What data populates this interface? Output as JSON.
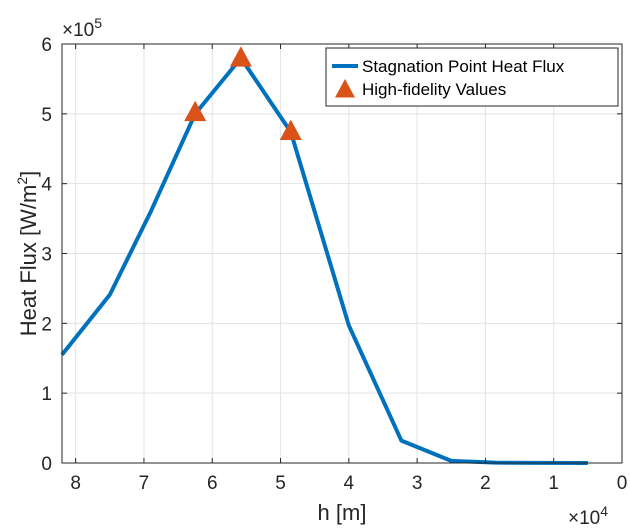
{
  "chart_data": {
    "type": "line",
    "xlabel": "h [m]",
    "ylabel": "Heat Flux [W/m^2]",
    "ylabel_base": "Heat Flux [W/m",
    "ylabel_sup": "2",
    "ylabel_close": "]",
    "x_multiplier": {
      "base": "×10",
      "exp": "4"
    },
    "y_multiplier": {
      "base": "×10",
      "exp": "5"
    },
    "x_reversed": true,
    "xlim": [
      82000,
      0
    ],
    "ylim": [
      0,
      600000
    ],
    "x_ticks": [
      80000,
      70000,
      60000,
      50000,
      40000,
      30000,
      20000,
      10000,
      0
    ],
    "x_tick_labels": [
      "8",
      "7",
      "6",
      "5",
      "4",
      "3",
      "2",
      "1",
      "0"
    ],
    "y_ticks": [
      0,
      100000,
      200000,
      300000,
      400000,
      500000,
      600000
    ],
    "y_tick_labels": [
      "0",
      "1",
      "2",
      "3",
      "4",
      "5",
      "6"
    ],
    "grid": true,
    "legend_position": "top-right",
    "series": [
      {
        "name": "Stagnation Point Heat Flux",
        "kind": "line",
        "color": "#0072BD",
        "x": [
          82000,
          75000,
          69000,
          62500,
          55800,
          48500,
          40000,
          32300,
          25000,
          18500,
          12000,
          5000
        ],
        "y": [
          155000,
          241000,
          360000,
          500000,
          580000,
          474000,
          197000,
          32000,
          3000,
          500,
          100,
          0
        ]
      },
      {
        "name": "High-fidelity Values",
        "kind": "marker",
        "marker": "triangle",
        "color": "#D95319",
        "x": [
          62500,
          55800,
          48500
        ],
        "y": [
          503000,
          581000,
          476000
        ]
      }
    ]
  }
}
